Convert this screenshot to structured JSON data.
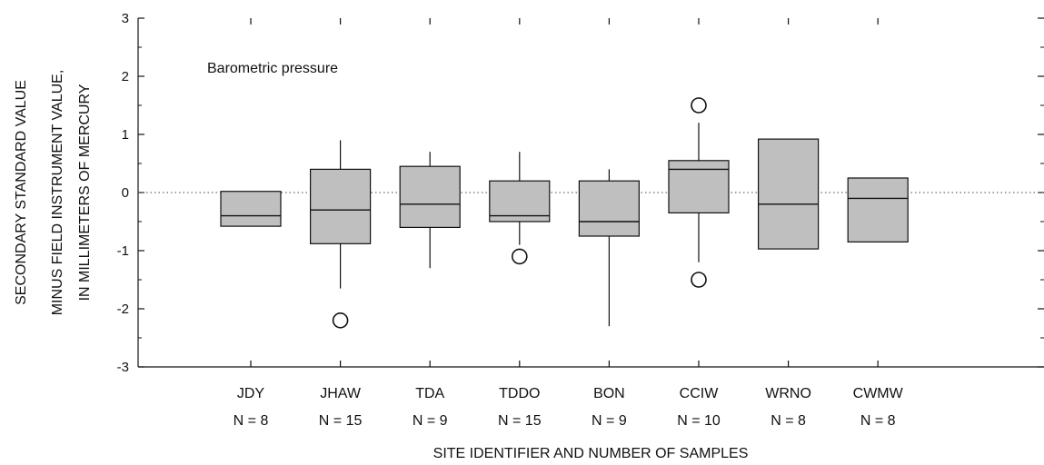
{
  "chart_data": {
    "type": "boxplot",
    "annotation": "Barometric pressure",
    "xlabel": "SITE IDENTIFIER AND NUMBER OF SAMPLES",
    "ylabel_lines": [
      "SECONDARY STANDARD VALUE",
      "MINUS FIELD INSTRUMENT VALUE,",
      "IN MILLIMETERS OF MERCURY"
    ],
    "ylim": [
      -3,
      3
    ],
    "yticks": [
      -3,
      -2,
      -1,
      0,
      1,
      2,
      3
    ],
    "ytick_labels": [
      "-3",
      "-2",
      "-1",
      "0",
      "1",
      "2",
      "3"
    ],
    "reference_line": 0,
    "grid": false,
    "box_fill": "#bfbfbf",
    "categories": [
      {
        "site": "JDY",
        "n_label": "N = 8",
        "whisker_low": null,
        "q1": -0.58,
        "median": -0.4,
        "q3": 0.02,
        "whisker_high": null,
        "outliers": []
      },
      {
        "site": "JHAW",
        "n_label": "N = 15",
        "whisker_low": -1.65,
        "q1": -0.88,
        "median": -0.3,
        "q3": 0.4,
        "whisker_high": 0.9,
        "outliers": [
          -2.2
        ]
      },
      {
        "site": "TDA",
        "n_label": "N = 9",
        "whisker_low": -1.3,
        "q1": -0.6,
        "median": -0.2,
        "q3": 0.45,
        "whisker_high": 0.7,
        "outliers": []
      },
      {
        "site": "TDDO",
        "n_label": "N = 15",
        "whisker_low": -0.9,
        "q1": -0.5,
        "median": -0.4,
        "q3": 0.2,
        "whisker_high": 0.7,
        "outliers": [
          -1.1
        ]
      },
      {
        "site": "BON",
        "n_label": "N = 9",
        "whisker_low": -2.3,
        "q1": -0.75,
        "median": -0.5,
        "q3": 0.2,
        "whisker_high": 0.4,
        "outliers": []
      },
      {
        "site": "CCIW",
        "n_label": "N = 10",
        "whisker_low": -1.2,
        "q1": -0.35,
        "median": 0.4,
        "q3": 0.55,
        "whisker_high": 1.2,
        "outliers": [
          1.5,
          -1.5
        ]
      },
      {
        "site": "WRNO",
        "n_label": "N = 8",
        "whisker_low": null,
        "q1": -0.97,
        "median": -0.2,
        "q3": 0.92,
        "whisker_high": null,
        "outliers": []
      },
      {
        "site": "CWMW",
        "n_label": "N = 8",
        "whisker_low": null,
        "q1": -0.85,
        "median": -0.1,
        "q3": 0.25,
        "whisker_high": null,
        "outliers": []
      }
    ]
  }
}
